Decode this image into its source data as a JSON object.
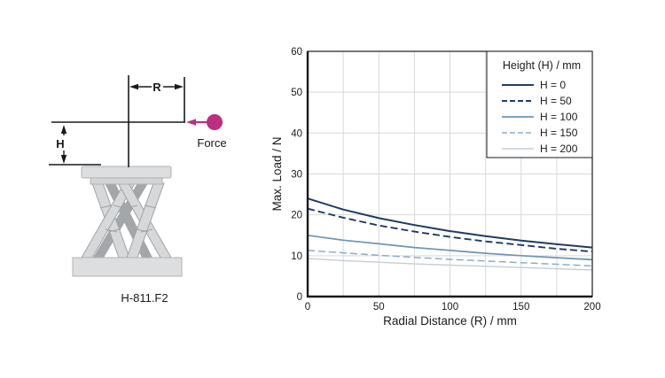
{
  "diagram": {
    "radius_label": "R",
    "height_label": "H",
    "force_label": "Force",
    "model_label": "H-811.F2",
    "force_color": "#bc2e7f"
  },
  "chart_data": {
    "type": "line",
    "title": "",
    "xlabel": "Radial Distance (R) / mm",
    "ylabel": "Max. Load / N",
    "xlim": [
      0,
      200
    ],
    "ylim": [
      0,
      60
    ],
    "xticks": [
      0,
      50,
      100,
      150,
      200
    ],
    "yticks": [
      0,
      10,
      20,
      30,
      40,
      50,
      60
    ],
    "grid": {
      "x_interval": 25,
      "y_interval": 10,
      "color": "#d9d9d9",
      "visible": true
    },
    "legend": {
      "title": "Height (H) / mm",
      "position": "top-right"
    },
    "x": [
      0,
      25,
      50,
      75,
      100,
      125,
      150,
      175,
      200
    ],
    "series": [
      {
        "name": "H = 0",
        "color": "#1f3b66",
        "dash": "solid",
        "width": 2.0,
        "values": [
          24.0,
          21.3,
          19.2,
          17.5,
          16.0,
          14.8,
          13.7,
          12.8,
          12.0
        ]
      },
      {
        "name": "H = 50",
        "color": "#1f3b66",
        "dash": "dashed",
        "width": 1.9,
        "values": [
          21.5,
          19.3,
          17.4,
          15.9,
          14.6,
          13.5,
          12.6,
          11.7,
          11.0
        ]
      },
      {
        "name": "H = 100",
        "color": "#6c95b4",
        "dash": "solid",
        "width": 1.7,
        "values": [
          15.0,
          13.8,
          12.9,
          12.0,
          11.3,
          10.6,
          10.0,
          9.5,
          9.0
        ]
      },
      {
        "name": "H = 150",
        "color": "#8badc9",
        "dash": "dashed",
        "width": 1.5,
        "values": [
          11.3,
          10.7,
          10.1,
          9.6,
          9.1,
          8.7,
          8.3,
          7.9,
          7.5
        ]
      },
      {
        "name": "H = 200",
        "color": "#c5ced6",
        "dash": "solid",
        "width": 1.4,
        "values": [
          9.3,
          8.8,
          8.4,
          8.0,
          7.7,
          7.4,
          7.1,
          6.8,
          6.5
        ]
      }
    ]
  }
}
